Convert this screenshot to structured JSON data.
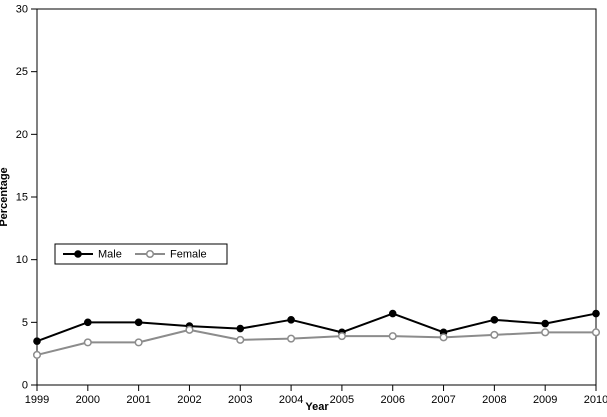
{
  "chart_data": {
    "type": "line",
    "title": "",
    "xlabel": "Year",
    "ylabel": "Percentage",
    "x": [
      1999,
      2000,
      2001,
      2002,
      2003,
      2004,
      2005,
      2006,
      2007,
      2008,
      2009,
      2010
    ],
    "ylim": [
      0,
      30
    ],
    "y_ticks": [
      0,
      5,
      10,
      15,
      20,
      25,
      30
    ],
    "grid": false,
    "legend_position": "inside-left-middle",
    "series": [
      {
        "name": "Male",
        "color": "#000000",
        "marker": "filled-circle",
        "values": [
          3.5,
          5.0,
          5.0,
          4.7,
          4.5,
          5.2,
          4.2,
          5.7,
          4.2,
          5.2,
          4.9,
          5.7
        ]
      },
      {
        "name": "Female",
        "color": "#8c8c8c",
        "marker": "open-circle",
        "values": [
          2.4,
          3.4,
          3.4,
          4.4,
          3.6,
          3.7,
          3.9,
          3.9,
          3.8,
          4.0,
          4.2,
          4.2
        ]
      }
    ]
  }
}
